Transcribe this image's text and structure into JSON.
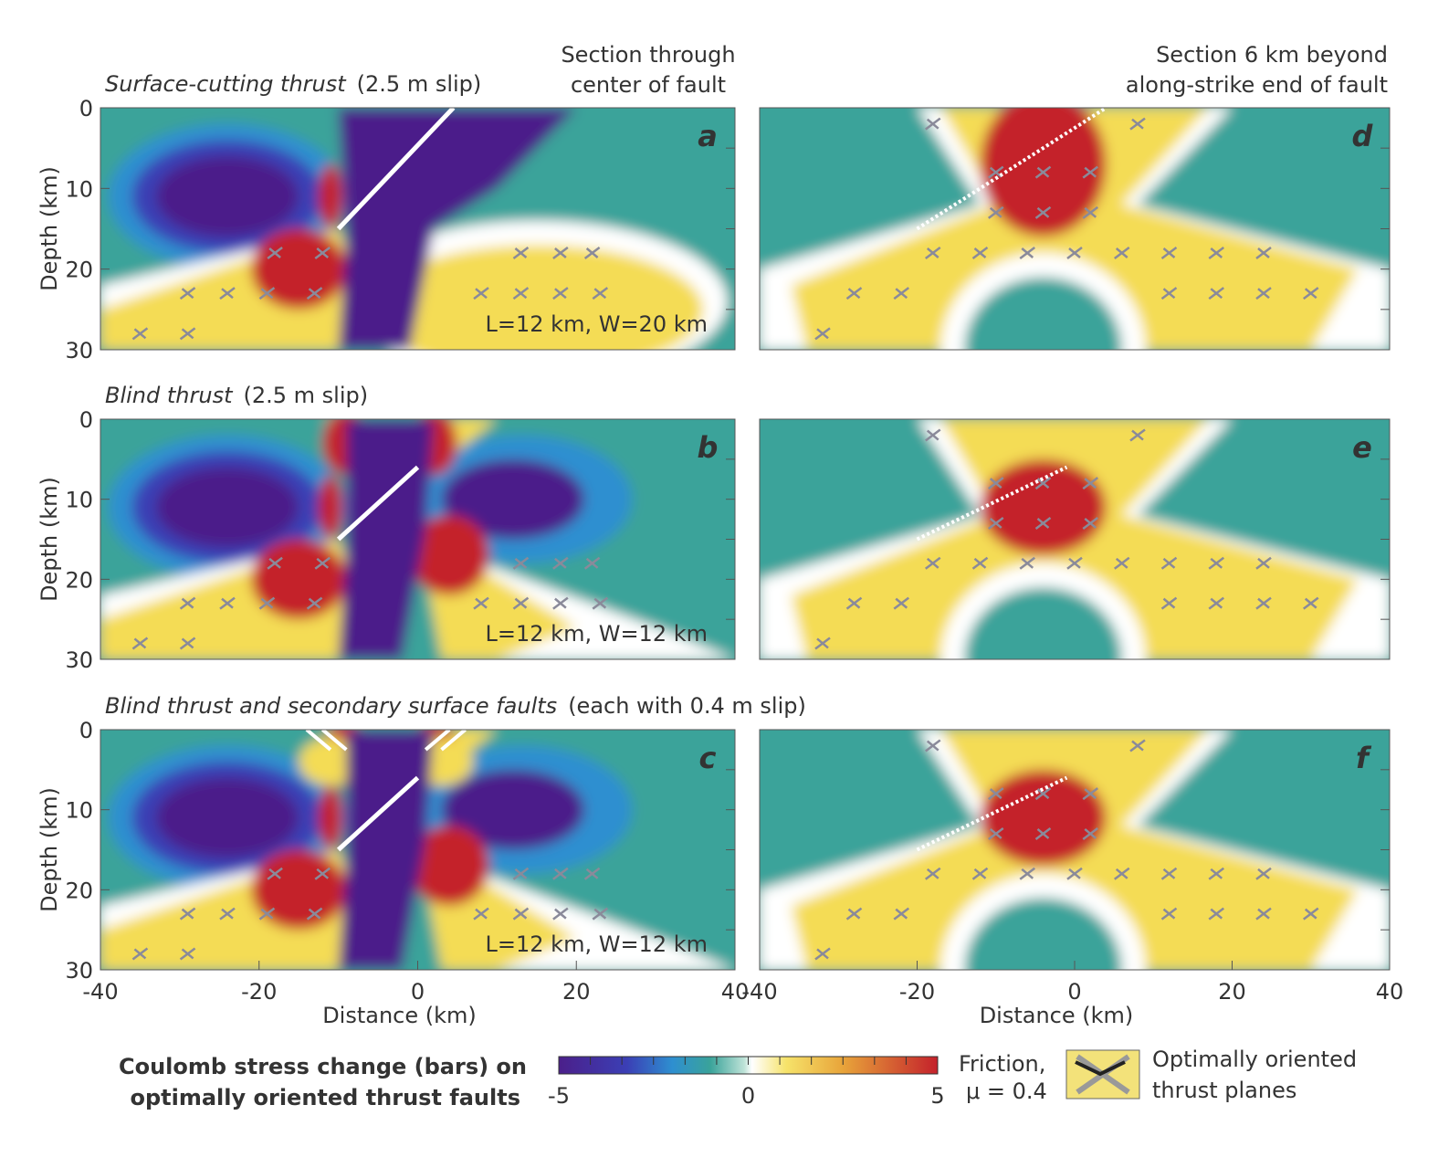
{
  "column_headers": [
    [
      "Section through",
      "center of fault"
    ],
    [
      "Section 6 km beyond",
      "along-strike end of fault"
    ]
  ],
  "chart_data": [
    {
      "type": "heatmap",
      "panel": "a",
      "title": "Surface-cutting thrust",
      "subtitle": "(2.5 m slip)",
      "annotation": "L=12 km, W=20 km",
      "ylabel": "Depth (km)",
      "xlim": [
        -40,
        40
      ],
      "ylim": [
        30,
        0
      ],
      "yticks": [
        0,
        10,
        20,
        30
      ]
    },
    {
      "type": "heatmap",
      "panel": "d",
      "xlim": [
        -40,
        40
      ],
      "ylim": [
        30,
        0
      ]
    },
    {
      "type": "heatmap",
      "panel": "b",
      "title": "Blind thrust",
      "subtitle": "(2.5 m slip)",
      "annotation": "L=12 km, W=12 km",
      "ylabel": "Depth (km)",
      "xlim": [
        -40,
        40
      ],
      "ylim": [
        30,
        0
      ],
      "yticks": [
        0,
        10,
        20,
        30
      ]
    },
    {
      "type": "heatmap",
      "panel": "e",
      "xlim": [
        -40,
        40
      ],
      "ylim": [
        30,
        0
      ]
    },
    {
      "type": "heatmap",
      "panel": "c",
      "title": "Blind thrust and secondary surface faults",
      "subtitle": "(each with 0.4 m slip)",
      "annotation": "L=12 km, W=12 km",
      "ylabel": "Depth (km)",
      "xlabel": "Distance  (km)",
      "xlim": [
        -40,
        40
      ],
      "ylim": [
        30,
        0
      ],
      "xticks": [
        -40,
        -20,
        0,
        20,
        40
      ],
      "yticks": [
        0,
        10,
        20,
        30
      ]
    },
    {
      "type": "heatmap",
      "panel": "f",
      "xlabel": "Distance  (km)",
      "xlim": [
        -40,
        40
      ],
      "ylim": [
        30,
        0
      ],
      "xticks": [
        -40,
        -20,
        0,
        20,
        40
      ]
    }
  ],
  "colorbar": {
    "label": [
      "Coulomb stress change (bars) on",
      "optimally oriented thrust faults"
    ],
    "lim": [
      -5,
      5
    ],
    "ticks": [
      -5,
      0,
      5
    ],
    "friction": [
      "Friction,",
      "μ = 0.4"
    ],
    "legend": [
      "Optimally oriented",
      "thrust planes"
    ]
  }
}
